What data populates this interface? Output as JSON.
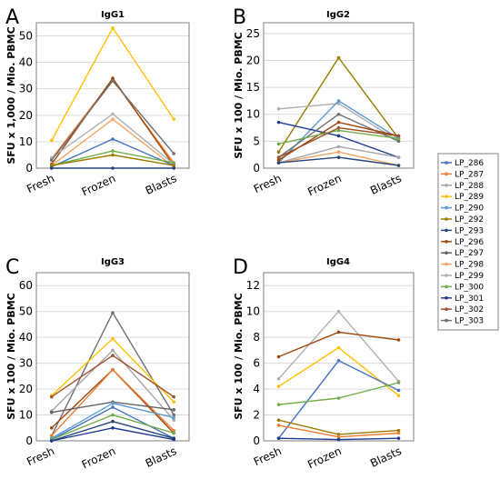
{
  "legend": [
    "LP_286",
    "LP_287",
    "LP_288",
    "LP_289",
    "LP_290",
    "LP_292",
    "LP_293",
    "LP_296",
    "LP_297",
    "LP_298",
    "LP_299",
    "LP_300",
    "LP_301",
    "LP_302",
    "LP_303"
  ],
  "colors": {
    "LP_286": "#4472c4",
    "LP_287": "#ed7d31",
    "LP_288": "#a5a5a5",
    "LP_289": "#ffc000",
    "LP_290": "#5b9bd5",
    "LP_292": "#9c7a00",
    "LP_293": "#264478",
    "LP_296": "#9e480e",
    "LP_297": "#636363",
    "LP_298": "#f4a460",
    "LP_299": "#b0b0b0",
    "LP_300": "#70ad47",
    "LP_301": "#1f3a93",
    "LP_302": "#a0522d",
    "LP_303": "#707070"
  },
  "chart_data": [
    {
      "type": "line",
      "panel": "A",
      "title": "IgG1",
      "ylabel": "SFU x 1,000 / Mio. PBMC",
      "categories": [
        "Fresh",
        "Frozen",
        "Blasts"
      ],
      "ylim": [
        0,
        55
      ],
      "yticks": [
        0,
        10,
        20,
        30,
        40,
        50
      ],
      "series": [
        {
          "name": "LP_289",
          "values": [
            10.5,
            53,
            18.5
          ]
        },
        {
          "name": "LP_287",
          "values": [
            3.5,
            33.5,
            2
          ]
        },
        {
          "name": "LP_296",
          "values": [
            1.5,
            34,
            1
          ]
        },
        {
          "name": "LP_299",
          "values": [
            4,
            20.5,
            1.5
          ]
        },
        {
          "name": "LP_298",
          "values": [
            1,
            18.5,
            0.5
          ]
        },
        {
          "name": "LP_286",
          "values": [
            0.5,
            11,
            1
          ]
        },
        {
          "name": "LP_300",
          "values": [
            1,
            6.5,
            2
          ]
        },
        {
          "name": "LP_292",
          "values": [
            1,
            5,
            1
          ]
        },
        {
          "name": "LP_303",
          "values": [
            3,
            33,
            5.5
          ]
        },
        {
          "name": "LP_293",
          "values": [
            0,
            0,
            0
          ]
        }
      ]
    },
    {
      "type": "line",
      "panel": "B",
      "title": "IgG2",
      "ylabel": "SFU x 100 / Mio. PBMC",
      "categories": [
        "Fresh",
        "Frozen",
        "Blasts"
      ],
      "ylim": [
        0,
        27
      ],
      "yticks": [
        0,
        5,
        10,
        15,
        20,
        25
      ],
      "series": [
        {
          "name": "LP_292",
          "values": [
            3,
            20.5,
            5.5
          ]
        },
        {
          "name": "LP_299",
          "values": [
            11,
            12,
            5
          ]
        },
        {
          "name": "LP_290",
          "values": [
            1,
            12.5,
            5.5
          ]
        },
        {
          "name": "LP_301",
          "values": [
            8.5,
            6,
            2
          ]
        },
        {
          "name": "LP_303",
          "values": [
            2,
            10,
            5
          ]
        },
        {
          "name": "LP_296",
          "values": [
            1.5,
            8.5,
            6
          ]
        },
        {
          "name": "LP_300",
          "values": [
            4.5,
            7,
            5.5
          ]
        },
        {
          "name": "LP_302",
          "values": [
            2,
            7.5,
            6
          ]
        },
        {
          "name": "LP_288",
          "values": [
            1,
            4,
            2
          ]
        },
        {
          "name": "LP_298",
          "values": [
            1,
            3,
            0.5
          ]
        },
        {
          "name": "LP_293",
          "values": [
            1,
            2,
            0.5
          ]
        }
      ]
    },
    {
      "type": "line",
      "panel": "C",
      "title": "IgG3",
      "ylabel": "SFU x 100 / Mio. PBMC",
      "categories": [
        "Fresh",
        "Frozen",
        "Blasts"
      ],
      "ylim": [
        0,
        65
      ],
      "yticks": [
        0,
        10,
        20,
        30,
        40,
        50,
        60
      ],
      "series": [
        {
          "name": "LP_303",
          "values": [
            2,
            49.5,
            10
          ]
        },
        {
          "name": "LP_289",
          "values": [
            17.5,
            39.5,
            15
          ]
        },
        {
          "name": "LP_288",
          "values": [
            11.5,
            35,
            8
          ]
        },
        {
          "name": "LP_302",
          "values": [
            17,
            33,
            17
          ]
        },
        {
          "name": "LP_296",
          "values": [
            5,
            27.5,
            3
          ]
        },
        {
          "name": "LP_287",
          "values": [
            2,
            27.5,
            4
          ]
        },
        {
          "name": "LP_297",
          "values": [
            11,
            15,
            12
          ]
        },
        {
          "name": "LP_290",
          "values": [
            1,
            14.5,
            9
          ]
        },
        {
          "name": "LP_286",
          "values": [
            0.5,
            13,
            1
          ]
        },
        {
          "name": "LP_300",
          "values": [
            0.5,
            10,
            3
          ]
        },
        {
          "name": "LP_293",
          "values": [
            0,
            7.5,
            1
          ]
        },
        {
          "name": "LP_301",
          "values": [
            0,
            5,
            0.5
          ]
        }
      ]
    },
    {
      "type": "line",
      "panel": "D",
      "title": "IgG4",
      "ylabel": "SFU x 100 / Mio. PBMC",
      "categories": [
        "Fresh",
        "Frozen",
        "Blasts"
      ],
      "ylim": [
        0,
        13
      ],
      "yticks": [
        0,
        2,
        4,
        6,
        8,
        10,
        12
      ],
      "series": [
        {
          "name": "LP_299",
          "values": [
            4.8,
            10,
            4.6
          ]
        },
        {
          "name": "LP_296",
          "values": [
            6.5,
            8.4,
            7.8
          ]
        },
        {
          "name": "LP_289",
          "values": [
            4.2,
            7.2,
            3.5
          ]
        },
        {
          "name": "LP_286",
          "values": [
            0.2,
            6.2,
            3.9
          ]
        },
        {
          "name": "LP_300",
          "values": [
            2.8,
            3.3,
            4.5
          ]
        },
        {
          "name": "LP_292",
          "values": [
            1.6,
            0.5,
            0.8
          ]
        },
        {
          "name": "LP_287",
          "values": [
            1.2,
            0.3,
            0.6
          ]
        },
        {
          "name": "LP_301",
          "values": [
            0.2,
            0.1,
            0.2
          ]
        }
      ]
    }
  ]
}
